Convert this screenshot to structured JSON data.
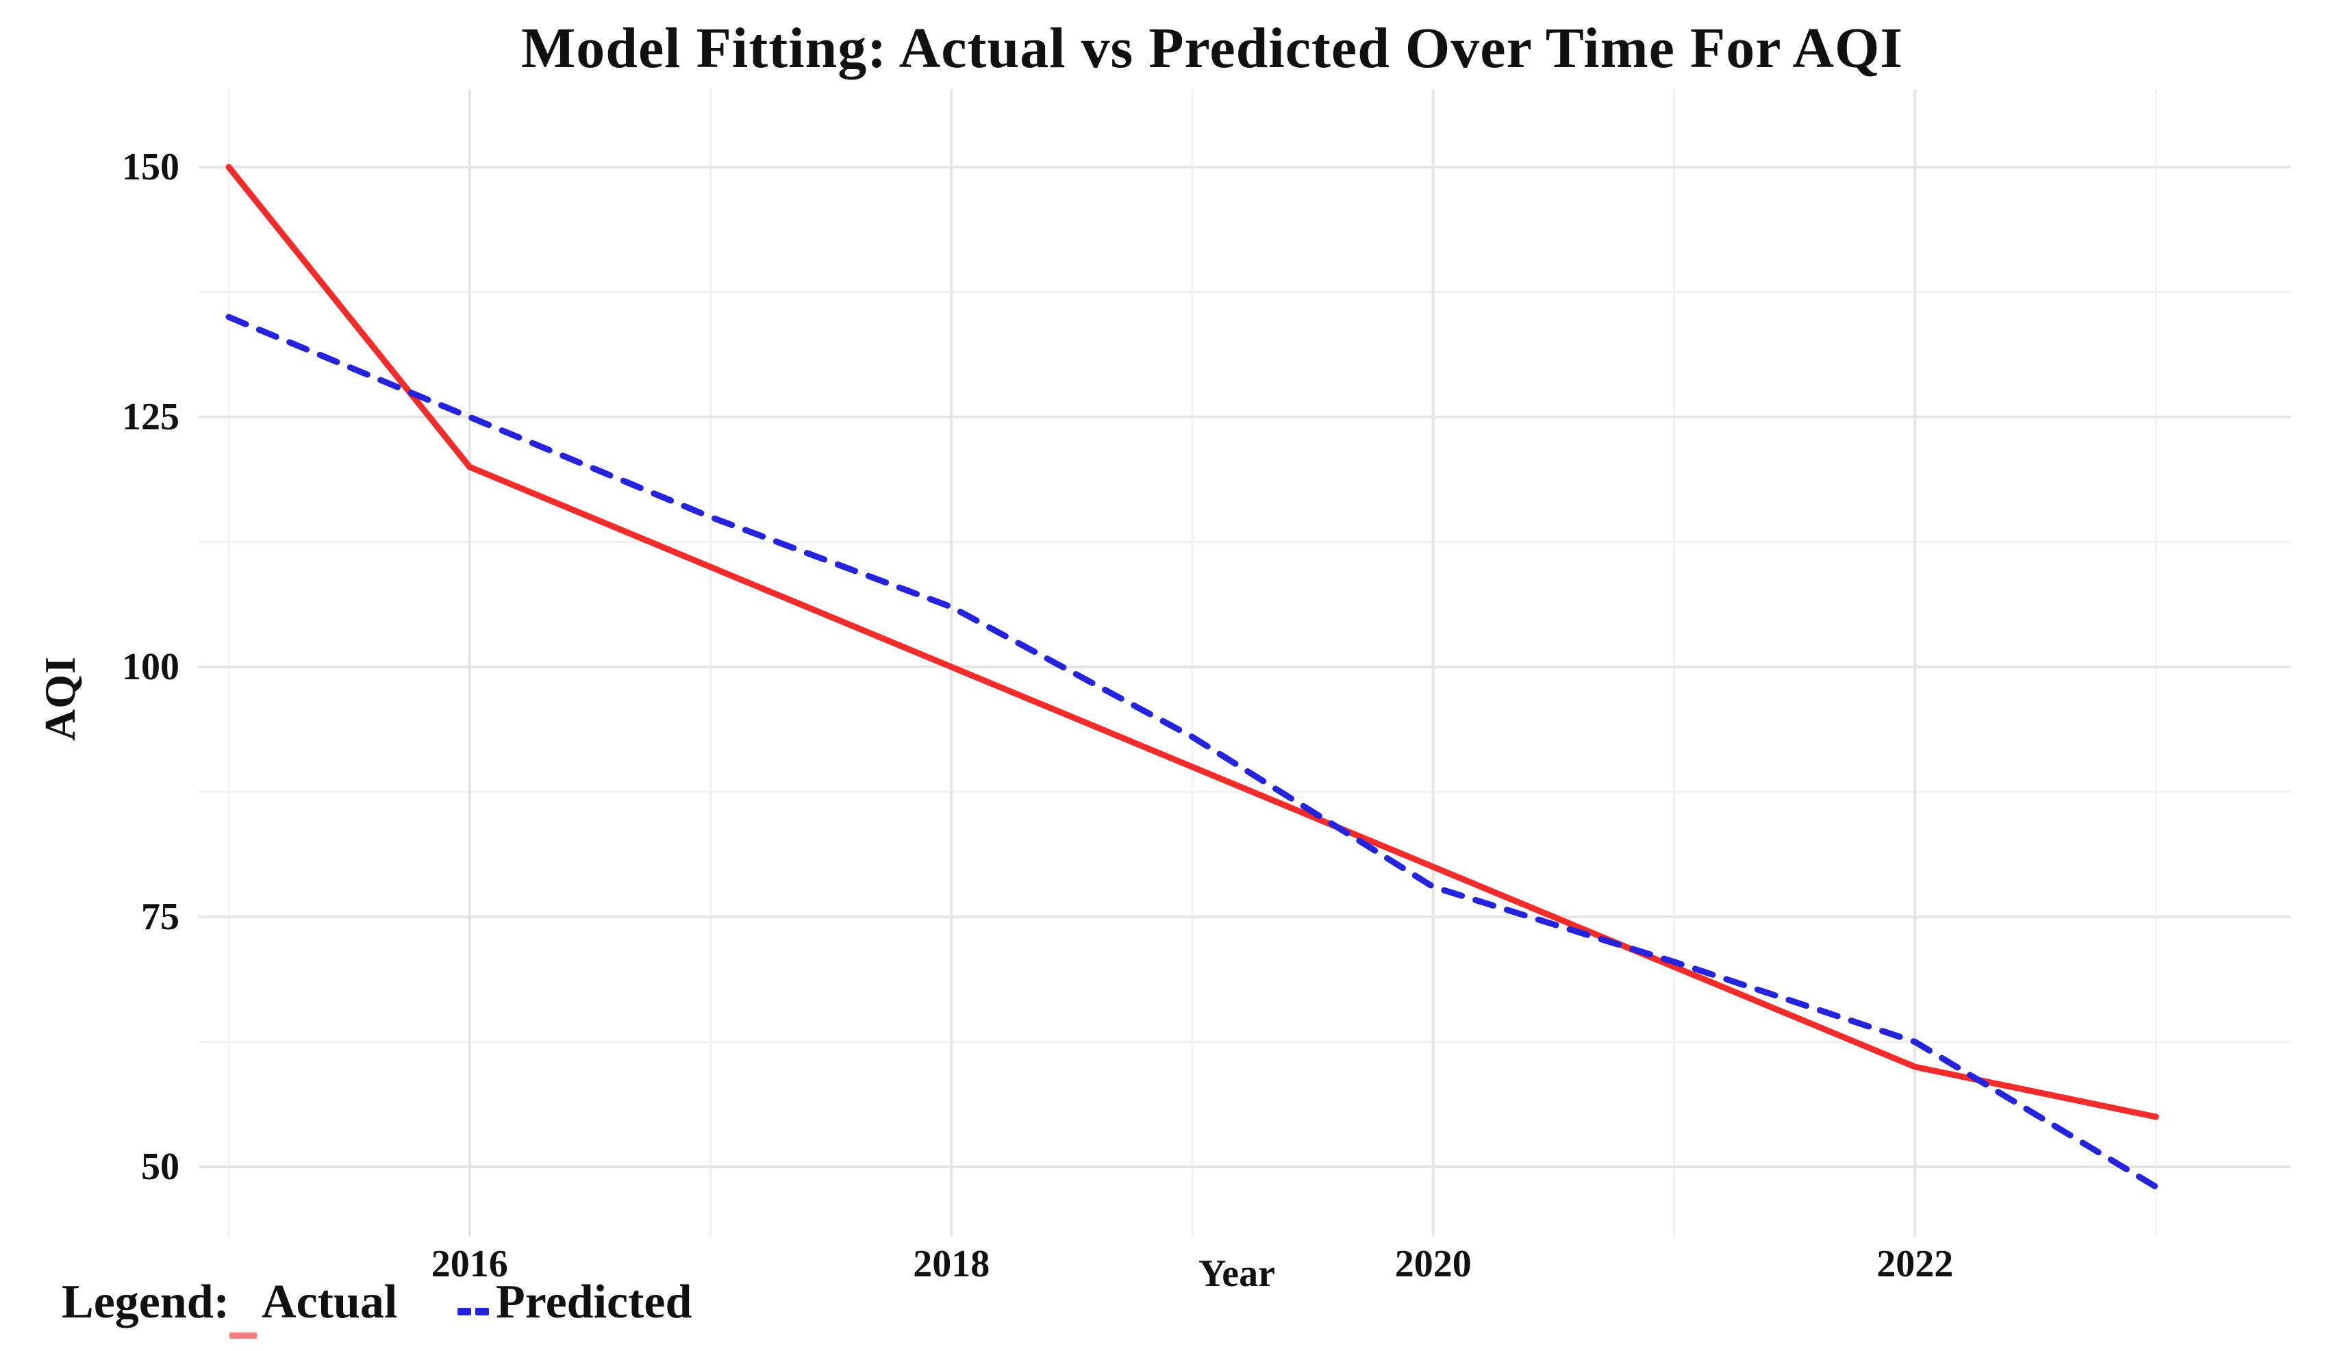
{
  "title": "Model Fitting: Actual vs Predicted Over Time For AQI",
  "axes": {
    "x_title": "Year",
    "y_title": "AQI"
  },
  "legend": {
    "label": "Legend:",
    "items": [
      {
        "name": "Actual",
        "style": "solid",
        "color": "#f22b2b"
      },
      {
        "name": "Predicted",
        "style": "dashed",
        "color": "#2424dc"
      }
    ]
  },
  "colors": {
    "background": "#ffffff",
    "text": "#111111",
    "grid_major": "#e5e5e5",
    "grid_minor": "#f1f1f1",
    "actual_line": "#f22b2b",
    "predicted_line": "#2424dc"
  },
  "chart_data": {
    "type": "line",
    "title": "Model Fitting: Actual vs Predicted Over Time For AQI",
    "xlabel": "Year",
    "ylabel": "AQI",
    "x": [
      2015,
      2016,
      2017,
      2018,
      2019,
      2020,
      2021,
      2022,
      2023
    ],
    "series": [
      {
        "name": "Actual",
        "style": "solid",
        "color": "#f22b2b",
        "values": [
          150,
          120,
          110,
          100,
          90,
          80,
          70,
          60,
          55
        ]
      },
      {
        "name": "Predicted",
        "style": "dashed",
        "color": "#2424dc",
        "values": [
          135,
          125,
          115,
          106,
          93,
          78,
          70.5,
          62.5,
          48
        ]
      }
    ],
    "xticks": [
      2016,
      2018,
      2020,
      2022
    ],
    "yticks": [
      50,
      75,
      100,
      125,
      150
    ],
    "x_minor_gridlines": [
      2015,
      2017,
      2019,
      2021,
      2023
    ],
    "y_minor_gridlines": [
      62.5,
      87.5,
      112.5,
      137.5
    ],
    "xlim": [
      2014.87,
      2023.56
    ],
    "ylim": [
      43,
      157.8
    ],
    "grid": "major+minor",
    "legend_position": "bottom-left"
  }
}
